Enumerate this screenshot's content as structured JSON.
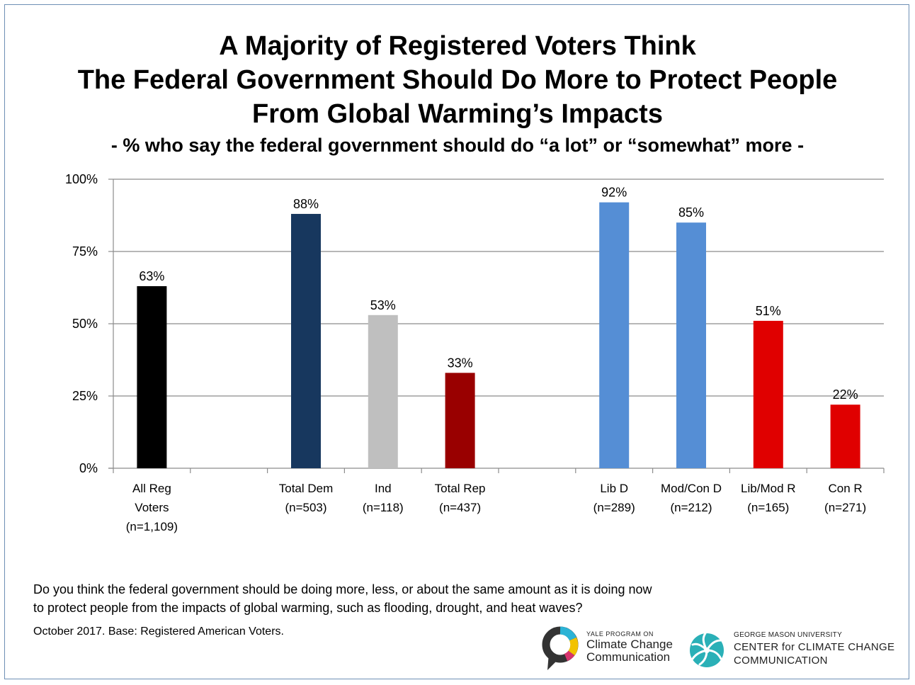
{
  "title_lines": [
    "A Majority of Registered Voters Think",
    "The Federal Government Should Do More to Protect People",
    "From Global Warming’s Impacts"
  ],
  "subtitle": "- % who say the federal government should do “a lot” or “somewhat” more -",
  "chart_data": {
    "type": "bar",
    "ylim": [
      0,
      100
    ],
    "yticks": [
      "0%",
      "25%",
      "50%",
      "75%",
      "100%"
    ],
    "grid": true,
    "bars": [
      {
        "slot": 0,
        "label_lines": [
          "All Reg",
          "Voters",
          "(n=1,109)"
        ],
        "value": 63,
        "value_label": "63%",
        "color": "#000000"
      },
      {
        "slot": 2,
        "label_lines": [
          "Total Dem",
          "(n=503)"
        ],
        "value": 88,
        "value_label": "88%",
        "color": "#17375e"
      },
      {
        "slot": 3,
        "label_lines": [
          "Ind",
          "(n=118)"
        ],
        "value": 53,
        "value_label": "53%",
        "color": "#bfbfbf"
      },
      {
        "slot": 4,
        "label_lines": [
          "Total Rep",
          "(n=437)"
        ],
        "value": 33,
        "value_label": "33%",
        "color": "#990000"
      },
      {
        "slot": 6,
        "label_lines": [
          "Lib D",
          "(n=289)"
        ],
        "value": 92,
        "value_label": "92%",
        "color": "#558ed5"
      },
      {
        "slot": 7,
        "label_lines": [
          "Mod/Con D",
          "(n=212)"
        ],
        "value": 85,
        "value_label": "85%",
        "color": "#558ed5"
      },
      {
        "slot": 8,
        "label_lines": [
          "Lib/Mod R",
          "(n=165)"
        ],
        "value": 51,
        "value_label": "51%",
        "color": "#e00000"
      },
      {
        "slot": 9,
        "label_lines": [
          "Con R",
          "(n=271)"
        ],
        "value": 22,
        "value_label": "22%",
        "color": "#e00000"
      }
    ],
    "slots": 10
  },
  "footnote": {
    "question_lines": [
      "Do you think the federal government should be doing more, less, or about the same amount as it is doing now",
      "to protect people from the impacts of global warming, such as flooding, drought, and heat waves?"
    ],
    "source": "October 2017.  Base: Registered American Voters."
  },
  "logos": {
    "yale": {
      "small": "YALE PROGRAM ON",
      "line1": "Climate Change",
      "line2": "Communication"
    },
    "gmu": {
      "small": "GEORGE MASON UNIVERSITY",
      "line1": "CENTER for CLIMATE CHANGE",
      "line2": "COMMUNICATION"
    }
  }
}
